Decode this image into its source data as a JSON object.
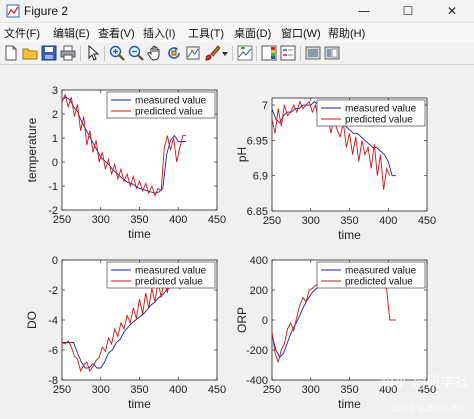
{
  "window": {
    "title": "Figure 2",
    "minimize_glyph": "—",
    "maximize_glyph": "☐",
    "close_glyph": "✕",
    "icon": "matlab-figure-icon"
  },
  "menu": [
    {
      "label": "文件(F)"
    },
    {
      "label": "编辑(E)"
    },
    {
      "label": "查看(V)"
    },
    {
      "label": "插入(I)"
    },
    {
      "label": "工具(T)"
    },
    {
      "label": "桌面(D)"
    },
    {
      "label": "窗口(W)"
    },
    {
      "label": "帮助(H)"
    }
  ],
  "toolbar": [
    {
      "icon": "new-figure-icon"
    },
    {
      "icon": "open-file-icon"
    },
    {
      "icon": "save-icon"
    },
    {
      "icon": "print-icon"
    },
    {
      "icon": "pointer-icon"
    },
    {
      "icon": "zoom-in-icon"
    },
    {
      "icon": "zoom-out-icon"
    },
    {
      "icon": "pan-icon"
    },
    {
      "icon": "rotate-3d-icon"
    },
    {
      "icon": "data-cursor-icon"
    },
    {
      "icon": "brush-icon"
    },
    {
      "icon": "dropdown-arrow-icon"
    },
    {
      "icon": "link-plot-icon"
    },
    {
      "icon": "insert-colorbar-icon"
    },
    {
      "icon": "insert-legend-icon"
    },
    {
      "icon": "hide-plot-tools-icon"
    },
    {
      "icon": "show-plot-tools-icon"
    }
  ],
  "watermark": {
    "text1": "知乎 @研学社",
    "text2": "CSDN @荔枝科研社"
  },
  "colors": {
    "measured": "#1f1f9e",
    "predicted": "#c41a1a"
  },
  "chart_data": [
    {
      "type": "line",
      "xlabel": "time",
      "ylabel": "temperature",
      "xlim": [
        250,
        450
      ],
      "ylim": [
        -2,
        3
      ],
      "xticks": [
        250,
        300,
        350,
        400,
        450
      ],
      "yticks": [
        3,
        2,
        1,
        0,
        -1,
        -2
      ],
      "legend_position": "top-right",
      "series": [
        {
          "name": "measured value",
          "x": [
            250,
            255,
            260,
            265,
            270,
            275,
            280,
            285,
            290,
            295,
            300,
            305,
            310,
            315,
            320,
            325,
            330,
            335,
            340,
            345,
            350,
            355,
            360,
            365,
            370,
            375,
            380,
            385,
            390,
            395,
            400,
            405,
            410
          ],
          "y": [
            2.6,
            2.7,
            2.6,
            2.3,
            2.1,
            1.7,
            1.4,
            1.1,
            0.8,
            0.5,
            0.2,
            0.05,
            -0.1,
            -0.3,
            -0.45,
            -0.6,
            -0.75,
            -0.85,
            -0.9,
            -1.0,
            -1.1,
            -1.15,
            -1.2,
            -1.25,
            -1.3,
            -1.25,
            -1.1,
            0.3,
            0.9,
            1.1,
            0.85,
            0.85,
            0.85
          ]
        },
        {
          "name": "predicted value",
          "x": [
            250,
            254,
            258,
            262,
            266,
            270,
            274,
            278,
            282,
            286,
            290,
            294,
            298,
            302,
            306,
            310,
            314,
            318,
            322,
            326,
            330,
            334,
            338,
            342,
            346,
            350,
            354,
            358,
            362,
            366,
            370,
            374,
            378,
            382,
            386,
            390,
            394,
            398,
            402,
            406,
            410
          ],
          "y": [
            2.5,
            2.8,
            2.3,
            2.7,
            1.9,
            2.4,
            1.3,
            1.9,
            0.7,
            1.3,
            0.4,
            0.9,
            0.0,
            0.4,
            -0.3,
            0.1,
            -0.5,
            -0.1,
            -0.7,
            -0.3,
            -0.8,
            -0.5,
            -1.0,
            -0.6,
            -1.1,
            -0.8,
            -1.2,
            -0.9,
            -1.3,
            -1.0,
            -1.4,
            -1.1,
            -1.2,
            0.6,
            1.1,
            0.5,
            1.0,
            0.0,
            0.6,
            1.1,
            1.1
          ]
        }
      ]
    },
    {
      "type": "line",
      "xlabel": "time",
      "ylabel": "pH",
      "xlim": [
        250,
        450
      ],
      "ylim": [
        6.85,
        7.01
      ],
      "xticks": [
        250,
        300,
        350,
        400,
        450
      ],
      "yticks": [
        7,
        6.95,
        6.9,
        6.85
      ],
      "ytick_labels": [
        "7",
        "6.95",
        "6.9",
        "6.85"
      ],
      "legend_position": "top-right",
      "series": [
        {
          "name": "measured value",
          "x": [
            250,
            255,
            260,
            265,
            270,
            275,
            280,
            285,
            290,
            295,
            300,
            305,
            310,
            315,
            320,
            325,
            330,
            335,
            340,
            345,
            350,
            355,
            360,
            365,
            370,
            375,
            380,
            385,
            390,
            395,
            400,
            405,
            410
          ],
          "y": [
            6.995,
            6.98,
            6.975,
            6.985,
            6.99,
            6.99,
            6.995,
            6.995,
            7.0,
            7.0,
            7.0,
            7.005,
            7.0,
            6.995,
            6.99,
            6.985,
            6.985,
            6.98,
            6.975,
            6.97,
            6.965,
            6.96,
            6.96,
            6.955,
            6.95,
            6.945,
            6.94,
            6.94,
            6.935,
            6.93,
            6.92,
            6.9,
            6.9
          ]
        },
        {
          "name": "predicted value",
          "x": [
            250,
            254,
            258,
            262,
            266,
            270,
            274,
            278,
            282,
            286,
            290,
            294,
            298,
            302,
            306,
            310,
            314,
            318,
            322,
            326,
            330,
            334,
            338,
            342,
            346,
            350,
            354,
            358,
            362,
            366,
            370,
            374,
            378,
            382,
            386,
            390,
            394,
            398,
            402
          ],
          "y": [
            6.98,
            6.96,
            6.995,
            6.97,
            7.0,
            6.985,
            6.99,
            7.0,
            6.99,
            7.005,
            6.995,
            7.0,
            7.005,
            6.99,
            7.0,
            6.98,
            6.99,
            6.975,
            6.985,
            6.96,
            6.98,
            6.965,
            6.955,
            6.975,
            6.94,
            6.96,
            6.93,
            6.955,
            6.92,
            6.95,
            6.93,
            6.94,
            6.91,
            6.945,
            6.9,
            6.93,
            6.88,
            6.91,
            6.9
          ]
        }
      ]
    },
    {
      "type": "line",
      "xlabel": "time",
      "ylabel": "DO",
      "xlim": [
        250,
        450
      ],
      "ylim": [
        -8,
        0
      ],
      "xticks": [
        250,
        300,
        350,
        400,
        450
      ],
      "yticks": [
        0,
        -2,
        -4,
        -6,
        -8
      ],
      "legend_position": "top-right",
      "series": [
        {
          "name": "measured value",
          "x": [
            250,
            255,
            260,
            265,
            270,
            275,
            280,
            285,
            290,
            295,
            300,
            305,
            310,
            315,
            320,
            325,
            330,
            335,
            340,
            345,
            350,
            355,
            360,
            365,
            370,
            375,
            380,
            385,
            390,
            395,
            400,
            405,
            410
          ],
          "y": [
            -5.5,
            -5.5,
            -5.5,
            -5.5,
            -6.2,
            -6.8,
            -7.2,
            -7.2,
            -6.9,
            -7.2,
            -7.2,
            -6.8,
            -6.2,
            -6.0,
            -5.5,
            -5.3,
            -4.8,
            -4.5,
            -4.2,
            -4.0,
            -3.8,
            -3.6,
            -3.3,
            -3.0,
            -2.8,
            -2.5,
            -2.3,
            -2.0,
            -1.8,
            -1.6,
            -1.5,
            -1.4,
            -1.3
          ]
        },
        {
          "name": "predicted value",
          "x": [
            250,
            254,
            258,
            262,
            266,
            270,
            274,
            278,
            282,
            286,
            290,
            294,
            298,
            302,
            306,
            310,
            314,
            318,
            322,
            326,
            330,
            334,
            338,
            342,
            346,
            350,
            354,
            358,
            362,
            366,
            370,
            374,
            378,
            382,
            386,
            390,
            394,
            398,
            402,
            406,
            410
          ],
          "y": [
            -5.5,
            -5.6,
            -5.4,
            -5.8,
            -6.4,
            -6.6,
            -7.4,
            -7.0,
            -6.8,
            -7.4,
            -7.1,
            -6.7,
            -6.5,
            -5.8,
            -6.1,
            -5.2,
            -5.6,
            -4.6,
            -5.1,
            -4.2,
            -4.6,
            -3.7,
            -4.2,
            -3.2,
            -3.9,
            -2.6,
            -3.6,
            -2.2,
            -3.2,
            -1.9,
            -2.8,
            -1.4,
            -2.5,
            -1.2,
            -2.2,
            -1.0,
            -1.8,
            -1.3,
            -1.9,
            -1.0,
            -1.5
          ]
        }
      ]
    },
    {
      "type": "line",
      "xlabel": "time",
      "ylabel": "ORP",
      "xlim": [
        250,
        450
      ],
      "ylim": [
        -400,
        400
      ],
      "xticks": [
        250,
        300,
        350,
        400,
        450
      ],
      "yticks": [
        400,
        200,
        0,
        -200,
        -400
      ],
      "legend_position": "top-right",
      "series": [
        {
          "name": "measured value",
          "x": [
            250,
            255,
            260,
            265,
            270,
            275,
            280,
            285,
            290,
            295,
            300,
            305,
            310,
            315,
            320,
            325,
            330,
            335,
            340,
            345,
            350,
            355,
            360,
            365,
            370,
            375,
            380,
            385,
            390,
            395,
            400,
            405,
            410
          ],
          "y": [
            -100,
            -200,
            -250,
            -220,
            -150,
            -80,
            -30,
            20,
            80,
            130,
            170,
            200,
            220,
            235,
            245,
            250,
            255,
            260,
            262,
            265,
            268,
            270,
            270,
            270,
            272,
            272,
            273,
            273,
            274,
            274,
            275,
            275,
            275
          ]
        },
        {
          "name": "predicted value",
          "x": [
            250,
            254,
            258,
            262,
            266,
            270,
            274,
            278,
            282,
            286,
            290,
            294,
            298,
            302,
            306,
            310,
            314,
            318,
            322,
            326,
            330,
            334,
            338,
            342,
            346,
            350,
            354,
            358,
            362,
            366,
            370,
            374,
            378,
            382,
            386,
            390,
            394,
            398,
            402,
            406,
            410
          ],
          "y": [
            -80,
            -220,
            -280,
            -200,
            -160,
            -60,
            -20,
            -70,
            20,
            100,
            150,
            120,
            200,
            210,
            230,
            240,
            250,
            255,
            258,
            262,
            265,
            267,
            268,
            269,
            270,
            271,
            272,
            272,
            273,
            273,
            274,
            274,
            274,
            275,
            275,
            275,
            275,
            200,
            0,
            0,
            0
          ]
        }
      ]
    }
  ]
}
